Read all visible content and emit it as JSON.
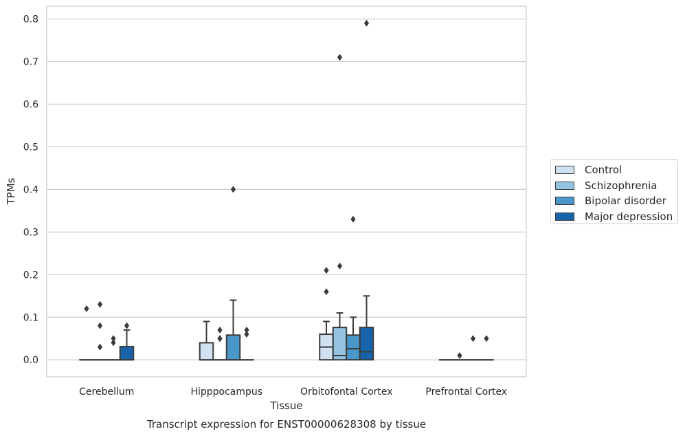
{
  "chart_data": {
    "type": "box",
    "title": "Transcript expression for ENST00000628308 by tissue",
    "xlabel": "Tissue",
    "ylabel": "TPMs",
    "ylim": [
      -0.04,
      0.83
    ],
    "yticks": [
      "0.0",
      "0.1",
      "0.2",
      "0.3",
      "0.4",
      "0.5",
      "0.6",
      "0.7",
      "0.8"
    ],
    "grid": "horizontal",
    "legend_position": "right",
    "categories": [
      "Cerebellum",
      "Hipppocampus",
      "Orbitofontal Cortex",
      "Prefrontal Cortex"
    ],
    "series": [
      {
        "name": "Control",
        "color": "#d0e1f2",
        "boxes": [
          {
            "q1": 0,
            "median": 0,
            "q3": 0,
            "whisker_low": 0,
            "whisker_high": 0,
            "outliers": [
              0.12
            ]
          },
          {
            "q1": 0,
            "median": 0,
            "q3": 0.04,
            "whisker_low": 0,
            "whisker_high": 0.09,
            "outliers": []
          },
          {
            "q1": 0,
            "median": 0.03,
            "q3": 0.06,
            "whisker_low": 0,
            "whisker_high": 0.09,
            "outliers": [
              0.16,
              0.21
            ]
          },
          {
            "q1": 0,
            "median": 0,
            "q3": 0,
            "whisker_low": 0,
            "whisker_high": 0,
            "outliers": []
          }
        ]
      },
      {
        "name": "Schizophrenia",
        "color": "#94c4df",
        "boxes": [
          {
            "q1": 0,
            "median": 0,
            "q3": 0,
            "whisker_low": 0,
            "whisker_high": 0,
            "outliers": [
              0.03,
              0.08,
              0.13
            ]
          },
          {
            "q1": 0,
            "median": 0,
            "q3": 0,
            "whisker_low": 0,
            "whisker_high": 0,
            "outliers": [
              0.05,
              0.05,
              0.07
            ]
          },
          {
            "q1": 0,
            "median": 0.01,
            "q3": 0.076,
            "whisker_low": 0,
            "whisker_high": 0.11,
            "outliers": [
              0.22,
              0.71
            ]
          },
          {
            "q1": 0,
            "median": 0,
            "q3": 0,
            "whisker_low": 0,
            "whisker_high": 0,
            "outliers": [
              0.01
            ]
          }
        ]
      },
      {
        "name": "Bipolar disorder",
        "color": "#4a98c9",
        "boxes": [
          {
            "q1": 0,
            "median": 0,
            "q3": 0,
            "whisker_low": 0,
            "whisker_high": 0,
            "outliers": [
              0.04,
              0.05
            ]
          },
          {
            "q1": 0,
            "median": 0,
            "q3": 0.058,
            "whisker_low": 0,
            "whisker_high": 0.14,
            "outliers": [
              0.4
            ]
          },
          {
            "q1": 0,
            "median": 0.026,
            "q3": 0.058,
            "whisker_low": 0,
            "whisker_high": 0.1,
            "outliers": [
              0.33
            ]
          },
          {
            "q1": 0,
            "median": 0,
            "q3": 0,
            "whisker_low": 0,
            "whisker_high": 0,
            "outliers": [
              0.05
            ]
          }
        ]
      },
      {
        "name": "Major depression",
        "color": "#1764ab",
        "boxes": [
          {
            "q1": 0,
            "median": 0,
            "q3": 0.031,
            "whisker_low": 0,
            "whisker_high": 0.07,
            "outliers": [
              0.08
            ]
          },
          {
            "q1": 0,
            "median": 0,
            "q3": 0,
            "whisker_low": 0,
            "whisker_high": 0,
            "outliers": [
              0.06,
              0.07
            ]
          },
          {
            "q1": 0,
            "median": 0.019,
            "q3": 0.076,
            "whisker_low": 0,
            "whisker_high": 0.15,
            "outliers": [
              0.79
            ]
          },
          {
            "q1": 0,
            "median": 0,
            "q3": 0,
            "whisker_low": 0,
            "whisker_high": 0,
            "outliers": [
              0.05
            ]
          }
        ]
      }
    ]
  }
}
